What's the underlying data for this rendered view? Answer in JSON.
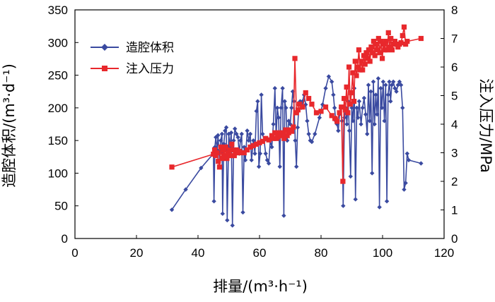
{
  "chart_data": {
    "type": "line",
    "xlabel": "排量/(m³·h⁻¹)",
    "ylabel_left": "造腔体积/(m³·d⁻¹)",
    "ylabel_right": "注入压力/MPa",
    "xlim": [
      0,
      120
    ],
    "ylim_left": [
      0,
      350
    ],
    "ylim_right": [
      0,
      8
    ],
    "x_ticks": [
      0,
      20,
      40,
      60,
      80,
      100,
      120
    ],
    "y_left_ticks": [
      0,
      50,
      100,
      150,
      200,
      250,
      300,
      350
    ],
    "y_right_ticks": [
      0,
      1,
      2,
      3,
      4,
      5,
      6,
      7,
      8
    ],
    "legend_position": "top-left",
    "series": [
      {
        "name": "造腔体积",
        "axis": "left",
        "color": "#3a4aa0",
        "marker": "diamond",
        "points": [
          [
            31.5,
            44
          ],
          [
            36,
            75
          ],
          [
            41,
            108
          ],
          [
            45,
            130
          ],
          [
            45.2,
            57
          ],
          [
            45.5,
            140
          ],
          [
            45.8,
            155
          ],
          [
            46.2,
            135
          ],
          [
            46.5,
            158
          ],
          [
            47,
            120
          ],
          [
            47.4,
            150
          ],
          [
            47.8,
            160
          ],
          [
            48,
            38
          ],
          [
            48.4,
            145
          ],
          [
            48.8,
            165
          ],
          [
            49.2,
            170
          ],
          [
            49.5,
            28
          ],
          [
            50,
            160
          ],
          [
            50.4,
            140
          ],
          [
            50.8,
            162
          ],
          [
            51.2,
            20
          ],
          [
            51.6,
            150
          ],
          [
            52,
            168
          ],
          [
            52.5,
            160
          ],
          [
            53,
            155
          ],
          [
            53.4,
            130
          ],
          [
            53.8,
            150
          ],
          [
            54.2,
            160
          ],
          [
            54.6,
            40
          ],
          [
            55,
            140
          ],
          [
            55.4,
            120
          ],
          [
            56,
            165
          ],
          [
            56.5,
            150
          ],
          [
            57,
            160
          ],
          [
            57.4,
            120
          ],
          [
            58,
            150
          ],
          [
            58.5,
            130
          ],
          [
            59,
            195
          ],
          [
            59.4,
            210
          ],
          [
            59.8,
            110
          ],
          [
            60.2,
            130
          ],
          [
            60.6,
            220
          ],
          [
            61,
            160
          ],
          [
            61.5,
            150
          ],
          [
            62,
            130
          ],
          [
            62.5,
            120
          ],
          [
            63,
            115
          ],
          [
            63.5,
            150
          ],
          [
            64,
            140
          ],
          [
            64.5,
            175
          ],
          [
            65,
            230
          ],
          [
            65.4,
            155
          ],
          [
            65.8,
            200
          ],
          [
            66.2,
            185
          ],
          [
            66.6,
            110
          ],
          [
            67,
            200
          ],
          [
            67.5,
            230
          ],
          [
            67.9,
            35
          ],
          [
            68.2,
            210
          ],
          [
            68.6,
            200
          ],
          [
            69,
            150
          ],
          [
            69.5,
            180
          ],
          [
            70,
            175
          ],
          [
            70.4,
            200
          ],
          [
            70.8,
            225
          ],
          [
            71.2,
            210
          ],
          [
            71.6,
            150
          ],
          [
            72,
            110
          ],
          [
            72.4,
            170
          ],
          [
            72.8,
            205
          ],
          [
            73.2,
            210
          ],
          [
            73.6,
            200
          ],
          [
            74,
            210
          ],
          [
            74.5,
            220
          ],
          [
            75,
            205
          ],
          [
            75.5,
            180
          ],
          [
            76,
            160
          ],
          [
            76.5,
            150
          ],
          [
            77,
            148
          ],
          [
            78,
            160
          ],
          [
            79.5,
            185
          ],
          [
            80.5,
            205
          ],
          [
            81.5,
            230
          ],
          [
            82.5,
            248
          ],
          [
            83.5,
            240
          ],
          [
            84,
            220
          ],
          [
            84.4,
            200
          ],
          [
            84.8,
            180
          ],
          [
            85.2,
            175
          ],
          [
            85.6,
            165
          ],
          [
            86,
            190
          ],
          [
            86.4,
            200
          ],
          [
            86.8,
            180
          ],
          [
            87.2,
            50
          ],
          [
            87.6,
            185
          ],
          [
            88,
            200
          ],
          [
            88.4,
            175
          ],
          [
            88.8,
            210
          ],
          [
            89.2,
            165
          ],
          [
            89.6,
            95
          ],
          [
            90,
            200
          ],
          [
            90.4,
            180
          ],
          [
            90.8,
            230
          ],
          [
            91.2,
            60
          ],
          [
            91.6,
            200
          ],
          [
            92,
            185
          ],
          [
            92.4,
            210
          ],
          [
            93,
            175
          ],
          [
            93.5,
            200
          ],
          [
            94,
            215
          ],
          [
            94.5,
            190
          ],
          [
            95,
            160
          ],
          [
            95.4,
            235
          ],
          [
            95.8,
            180
          ],
          [
            96.2,
            225
          ],
          [
            96.6,
            100
          ],
          [
            97,
            240
          ],
          [
            97.4,
            175
          ],
          [
            97.8,
            220
          ],
          [
            98.2,
            190
          ],
          [
            98.6,
            245
          ],
          [
            99,
            48
          ],
          [
            99.4,
            230
          ],
          [
            99.8,
            200
          ],
          [
            100.2,
            240
          ],
          [
            100.6,
            180
          ],
          [
            101,
            235
          ],
          [
            101.4,
            57
          ],
          [
            101.8,
            220
          ],
          [
            102.2,
            240
          ],
          [
            102.6,
            210
          ],
          [
            103,
            235
          ],
          [
            103.5,
            240
          ],
          [
            104,
            230
          ],
          [
            104.5,
            225
          ],
          [
            105,
            235
          ],
          [
            105.5,
            240
          ],
          [
            106,
            235
          ],
          [
            106.5,
            200
          ],
          [
            107,
            75
          ],
          [
            107.5,
            85
          ],
          [
            108,
            130
          ],
          [
            108.5,
            120
          ],
          [
            112.5,
            115
          ]
        ]
      },
      {
        "name": "注入压力",
        "axis": "right",
        "color": "#e8282c",
        "marker": "square",
        "points": [
          [
            31.5,
            2.5
          ],
          [
            45,
            2.95
          ],
          [
            45.4,
            3.1
          ],
          [
            45.8,
            2.9
          ],
          [
            46.2,
            3.0
          ],
          [
            46.6,
            2.7
          ],
          [
            47,
            2.5
          ],
          [
            47.4,
            3.2
          ],
          [
            47.8,
            2.8
          ],
          [
            48.2,
            3.1
          ],
          [
            48.6,
            2.9
          ],
          [
            49,
            3.2
          ],
          [
            49.4,
            2.8
          ],
          [
            49.8,
            3.0
          ],
          [
            50.2,
            3.1
          ],
          [
            50.6,
            2.9
          ],
          [
            51,
            3.3
          ],
          [
            51.4,
            3.1
          ],
          [
            51.8,
            2.9
          ],
          [
            52.2,
            3.0
          ],
          [
            52.6,
            3.1
          ],
          [
            53,
            3.0
          ],
          [
            53.4,
            3.05
          ],
          [
            54,
            3.0
          ],
          [
            55,
            3.0
          ],
          [
            56,
            3.1
          ],
          [
            57,
            3.2
          ],
          [
            58,
            3.25
          ],
          [
            59,
            3.3
          ],
          [
            60,
            3.35
          ],
          [
            61,
            3.4
          ],
          [
            62,
            3.5
          ],
          [
            63,
            3.45
          ],
          [
            64,
            3.6
          ],
          [
            64.5,
            3.5
          ],
          [
            65,
            3.7
          ],
          [
            65.5,
            3.5
          ],
          [
            66,
            3.55
          ],
          [
            66.5,
            3.7
          ],
          [
            67,
            3.6
          ],
          [
            67.5,
            3.7
          ],
          [
            68,
            3.5
          ],
          [
            68.5,
            3.8
          ],
          [
            69,
            3.6
          ],
          [
            69.5,
            3.7
          ],
          [
            70,
            3.8
          ],
          [
            70.5,
            3.75
          ],
          [
            71,
            3.9
          ],
          [
            71.5,
            6.3
          ],
          [
            72,
            4.4
          ],
          [
            72.5,
            4.5
          ],
          [
            73,
            4.7
          ],
          [
            74,
            4.6
          ],
          [
            75,
            5.1
          ],
          [
            76,
            4.9
          ],
          [
            77,
            4.7
          ],
          [
            78.5,
            4.4
          ],
          [
            80,
            4.45
          ],
          [
            81.5,
            4.6
          ],
          [
            83.5,
            4.3
          ],
          [
            84.5,
            4.2
          ],
          [
            85.2,
            4.1
          ],
          [
            86,
            4.4
          ],
          [
            86.6,
            4.6
          ],
          [
            87.1,
            2.0
          ],
          [
            87.5,
            4.9
          ],
          [
            87.9,
            4.5
          ],
          [
            88.3,
            5.3
          ],
          [
            88.7,
            4.4
          ],
          [
            89.1,
            6.0
          ],
          [
            89.5,
            4.7
          ],
          [
            89.9,
            5.1
          ],
          [
            90.3,
            5.8
          ],
          [
            90.7,
            4.8
          ],
          [
            91.1,
            6.2
          ],
          [
            91.5,
            5.7
          ],
          [
            91.9,
            6.0
          ],
          [
            92.3,
            6.6
          ],
          [
            92.7,
            5.9
          ],
          [
            93.1,
            6.2
          ],
          [
            93.5,
            5.9
          ],
          [
            93.9,
            6.4
          ],
          [
            94.3,
            6.1
          ],
          [
            94.7,
            6.5
          ],
          [
            95.1,
            6.3
          ],
          [
            95.5,
            6.6
          ],
          [
            95.9,
            6.2
          ],
          [
            96.3,
            6.7
          ],
          [
            96.7,
            6.5
          ],
          [
            97.1,
            6.9
          ],
          [
            97.5,
            6.4
          ],
          [
            97.9,
            6.8
          ],
          [
            98.3,
            6.6
          ],
          [
            98.7,
            7.0
          ],
          [
            99.1,
            6.5
          ],
          [
            99.5,
            6.9
          ],
          [
            99.9,
            6.3
          ],
          [
            100.3,
            6.8
          ],
          [
            100.7,
            6.6
          ],
          [
            101.1,
            6.9
          ],
          [
            101.5,
            6.6
          ],
          [
            101.9,
            7.2
          ],
          [
            102.3,
            6.7
          ],
          [
            102.7,
            7.0
          ],
          [
            103.1,
            6.6
          ],
          [
            103.5,
            6.8
          ],
          [
            104,
            6.9
          ],
          [
            104.5,
            6.8
          ],
          [
            105,
            6.7
          ],
          [
            105.5,
            6.8
          ],
          [
            106,
            6.85
          ],
          [
            106.5,
            7.1
          ],
          [
            107,
            7.4
          ],
          [
            107.5,
            6.8
          ],
          [
            108,
            6.9
          ],
          [
            112.5,
            7.0
          ]
        ]
      }
    ]
  }
}
